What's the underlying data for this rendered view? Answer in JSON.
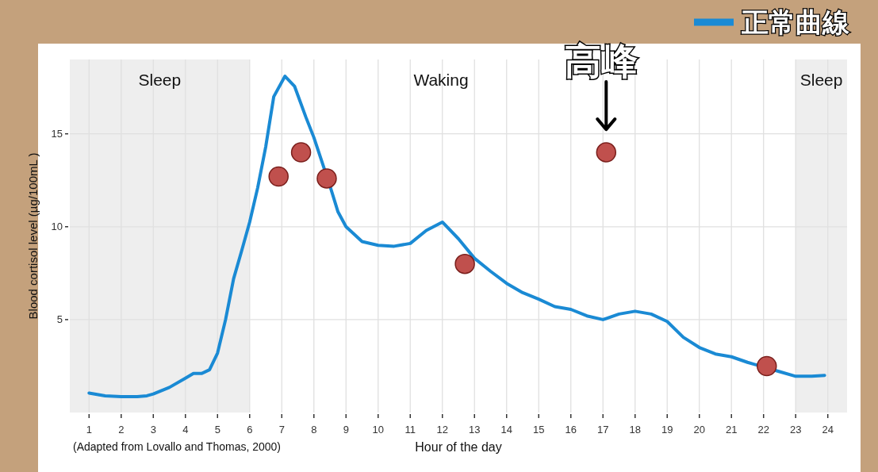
{
  "chart_data": {
    "type": "line",
    "ylabel": "Blood cortisol level (µg/100mL )",
    "xlabel": "Hour of the day",
    "xlim": [
      0.4,
      24.6
    ],
    "ylim": [
      0,
      19
    ],
    "xticks": [
      1,
      2,
      3,
      4,
      5,
      6,
      7,
      8,
      9,
      10,
      11,
      12,
      13,
      14,
      15,
      16,
      17,
      18,
      19,
      20,
      21,
      22,
      23,
      24
    ],
    "yticks": [
      5,
      10,
      15
    ],
    "grid": true,
    "legend": "top right",
    "bands": [
      {
        "axis": "x",
        "from": 0.4,
        "to": 6,
        "label": "Sleep",
        "color": "#eeeeee"
      },
      {
        "axis": "x",
        "from": 23,
        "to": 24.6,
        "label": "Sleep",
        "color": "#eeeeee"
      }
    ],
    "annotations": [
      "(Adapted from Lovallo and Thomas, 2000)",
      "Waking",
      {
        "text": "高峰",
        "x": 17.1,
        "y": 14.0
      }
    ],
    "series": [
      {
        "name": "正常曲線",
        "color": "#1a8ad4",
        "x": [
          1,
          1.5,
          2,
          2.5,
          2.8,
          3,
          3.5,
          4,
          4.25,
          4.5,
          4.75,
          5,
          5.25,
          5.5,
          5.75,
          6,
          6.25,
          6.5,
          6.75,
          7.1,
          7.4,
          7.75,
          8,
          8.5,
          8.75,
          9,
          9.5,
          10,
          10.5,
          11,
          11.5,
          12,
          12.5,
          13,
          13.5,
          14,
          14.5,
          15,
          15.5,
          16,
          16.5,
          17,
          17.5,
          18,
          18.5,
          19,
          19.5,
          20,
          20.5,
          21,
          21.5,
          21.7,
          22.5,
          23,
          23.5,
          23.9
        ],
        "values": [
          1.05,
          0.9,
          0.85,
          0.85,
          0.9,
          1.0,
          1.35,
          1.85,
          2.1,
          2.1,
          2.3,
          3.2,
          5.0,
          7.2,
          8.7,
          10.25,
          12.1,
          14.3,
          17.0,
          18.1,
          17.55,
          15.9,
          14.8,
          12.2,
          10.8,
          10.0,
          9.2,
          9.0,
          8.95,
          9.1,
          9.8,
          10.25,
          9.35,
          8.3,
          7.6,
          6.95,
          6.45,
          6.1,
          5.7,
          5.55,
          5.2,
          5.0,
          5.3,
          5.45,
          5.3,
          4.9,
          4.05,
          3.5,
          3.15,
          3.0,
          2.7,
          2.6,
          2.2,
          1.95,
          1.95,
          2.0
        ]
      },
      {
        "type": "scatter",
        "marker": "circle",
        "color": "#c0504d",
        "x": [
          6.9,
          7.6,
          8.4,
          12.7,
          17.1,
          22.1
        ],
        "values": [
          12.7,
          14.0,
          12.6,
          8.0,
          14.0,
          2.5
        ]
      }
    ]
  }
}
